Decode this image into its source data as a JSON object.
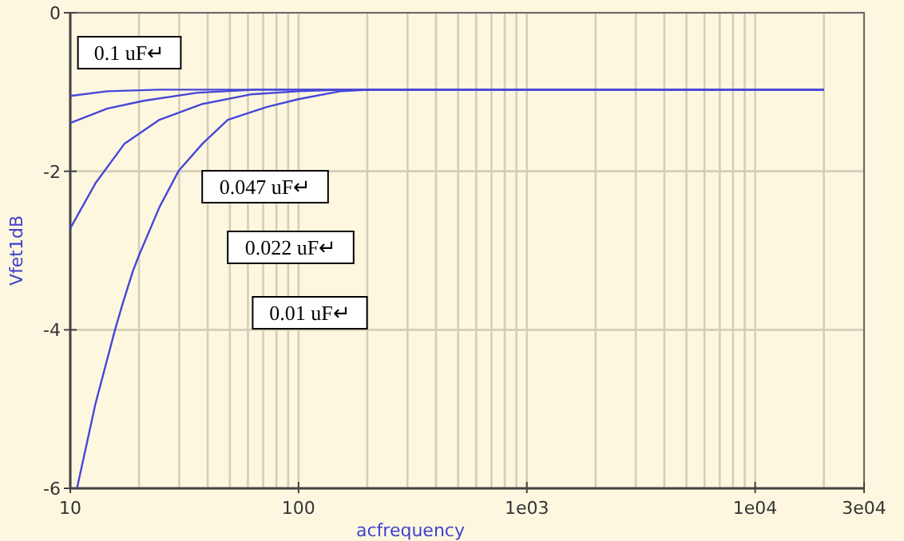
{
  "chart_data": {
    "type": "line",
    "xlabel": "acfrequency",
    "ylabel": "Vfet1dB",
    "log": "x",
    "grid": true,
    "line_style": "solid",
    "marker": "none",
    "xlim": [
      10,
      30000
    ],
    "ylim": [
      -6,
      0
    ],
    "xticks": [
      10,
      {
        "value": 20,
        "label": null
      },
      {
        "value": 30,
        "label": null
      },
      {
        "value": 40,
        "label": null
      },
      {
        "value": 50,
        "label": null
      },
      {
        "value": 60,
        "label": null
      },
      {
        "value": 70,
        "label": null
      },
      {
        "value": 80,
        "label": null
      },
      {
        "value": 90,
        "label": null
      },
      100,
      {
        "value": 200,
        "label": null
      },
      {
        "value": 300,
        "label": null
      },
      {
        "value": 400,
        "label": null
      },
      {
        "value": 500,
        "label": null
      },
      {
        "value": 600,
        "label": null
      },
      {
        "value": 700,
        "label": null
      },
      {
        "value": 800,
        "label": null
      },
      {
        "value": 900,
        "label": null
      },
      {
        "value": 1000,
        "label": "1e03"
      },
      {
        "value": 2000,
        "label": null
      },
      {
        "value": 3000,
        "label": null
      },
      {
        "value": 4000,
        "label": null
      },
      {
        "value": 5000,
        "label": null
      },
      {
        "value": 6000,
        "label": null
      },
      {
        "value": 7000,
        "label": null
      },
      {
        "value": 8000,
        "label": null
      },
      {
        "value": 9000,
        "label": null
      },
      {
        "value": 10000,
        "label": "1e04"
      },
      {
        "value": 20000,
        "label": null
      },
      {
        "value": 30000,
        "label": "3e04"
      }
    ],
    "yticks": [
      0,
      -2,
      -4,
      -6
    ],
    "series": [
      {
        "color": "#4646d8",
        "x": [
          10,
          14.5,
          24.6,
          50,
          100,
          20000
        ],
        "values": [
          -1.05,
          -0.99,
          -0.97,
          -0.97,
          -0.97,
          -0.97
        ]
      },
      {
        "color": "#4646d8",
        "x": [
          10,
          14.5,
          21,
          35.7,
          65,
          120,
          20000
        ],
        "values": [
          -1.39,
          -1.21,
          -1.11,
          -1.01,
          -0.97,
          -0.97,
          -0.97
        ]
      },
      {
        "color": "#4646d8",
        "x": [
          10,
          12.9,
          17.3,
          24.6,
          38,
          61.6,
          100,
          160,
          20000
        ],
        "values": [
          -2.72,
          -2.15,
          -1.65,
          -1.35,
          -1.15,
          -1.03,
          -0.99,
          -0.97,
          -0.97
        ]
      },
      {
        "color": "#4646d8",
        "x": [
          10.7,
          12.9,
          15.7,
          17,
          18.8,
          20,
          24.6,
          29.9,
          38,
          49,
          72.5,
          100,
          152,
          210,
          20000
        ],
        "values": [
          -6,
          -4.93,
          -4,
          -3.66,
          -3.26,
          -3.06,
          -2.45,
          -1.99,
          -1.65,
          -1.35,
          -1.19,
          -1.09,
          -0.99,
          -0.97,
          -0.97
        ]
      }
    ],
    "annotations": [
      "0.1 uF↵",
      "0.047 uF↵",
      "0.022 uF↵",
      "0.01 uF↵"
    ]
  }
}
